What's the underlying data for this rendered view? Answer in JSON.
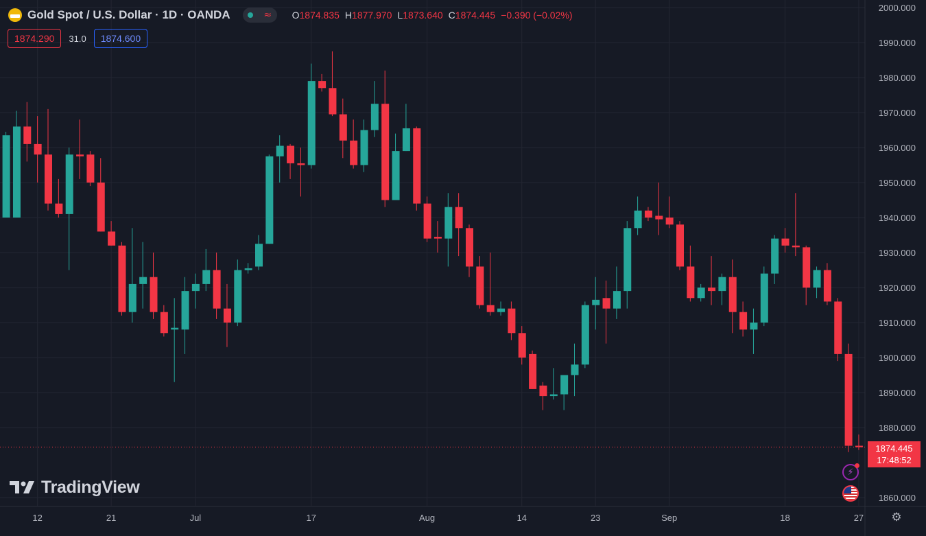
{
  "header": {
    "title": "Gold Spot / U.S. Dollar · 1D · OANDA",
    "ohlc": [
      {
        "key": "O",
        "value": "1874.835"
      },
      {
        "key": "H",
        "value": "1877.970"
      },
      {
        "key": "L",
        "value": "1873.640"
      },
      {
        "key": "C",
        "value": "1874.445"
      }
    ],
    "change": "−0.390 (−0.02%)",
    "bid": "1874.290",
    "spread": "31.0",
    "ask": "1874.600"
  },
  "watermark": "TradingView",
  "price_badge": {
    "price": "1874.445",
    "countdown": "17:48:52"
  },
  "colors": {
    "up": "#26a69a",
    "down": "#f23645",
    "background": "#161a25",
    "grid": "#232632",
    "text": "#b2b5be"
  },
  "icons": [
    "tradingview-logo-icon",
    "flash-icon",
    "us-flag-icon",
    "settings-icon"
  ],
  "chart_data": {
    "type": "candlestick",
    "y_axis": {
      "min": 1856,
      "max": 2001,
      "ticks": [
        "2000.000",
        "1990.000",
        "1980.000",
        "1970.000",
        "1960.000",
        "1950.000",
        "1940.000",
        "1930.000",
        "1920.000",
        "1910.000",
        "1900.000",
        "1890.000",
        "1880.000",
        "1860.000"
      ]
    },
    "x_ticks": [
      {
        "label": "12",
        "index": 3
      },
      {
        "label": "21",
        "index": 10
      },
      {
        "label": "Jul",
        "index": 18
      },
      {
        "label": "17",
        "index": 29
      },
      {
        "label": "Aug",
        "index": 40
      },
      {
        "label": "14",
        "index": 49
      },
      {
        "label": "23",
        "index": 56
      },
      {
        "label": "Sep",
        "index": 63
      },
      {
        "label": "18",
        "index": 74
      },
      {
        "label": "27",
        "index": 81
      }
    ],
    "last_price": 1874.445,
    "candles": [
      {
        "o": 1940.0,
        "h": 1964.5,
        "l": 1940.0,
        "c": 1963.5
      },
      {
        "o": 1940.0,
        "h": 1970.5,
        "l": 1940.0,
        "c": 1966.0
      },
      {
        "o": 1966.0,
        "h": 1973.0,
        "l": 1956.0,
        "c": 1961.0
      },
      {
        "o": 1961.0,
        "h": 1969.0,
        "l": 1950.0,
        "c": 1958.0
      },
      {
        "o": 1958.0,
        "h": 1971.0,
        "l": 1942.0,
        "c": 1944.0
      },
      {
        "o": 1944.0,
        "h": 1951.0,
        "l": 1940.0,
        "c": 1941.0
      },
      {
        "o": 1941.0,
        "h": 1960.0,
        "l": 1925.0,
        "c": 1958.0
      },
      {
        "o": 1958.0,
        "h": 1968.0,
        "l": 1951.0,
        "c": 1957.5
      },
      {
        "o": 1958.0,
        "h": 1959.0,
        "l": 1949.0,
        "c": 1950.0
      },
      {
        "o": 1950.0,
        "h": 1957.0,
        "l": 1936.0,
        "c": 1936.0
      },
      {
        "o": 1936.0,
        "h": 1939.0,
        "l": 1932.0,
        "c": 1932.0
      },
      {
        "o": 1932.0,
        "h": 1933.0,
        "l": 1912.0,
        "c": 1913.0
      },
      {
        "o": 1913.0,
        "h": 1937.0,
        "l": 1910.0,
        "c": 1921.0
      },
      {
        "o": 1921.0,
        "h": 1933.0,
        "l": 1914.0,
        "c": 1923.0
      },
      {
        "o": 1923.0,
        "h": 1930.0,
        "l": 1911.0,
        "c": 1913.0
      },
      {
        "o": 1913.0,
        "h": 1915.0,
        "l": 1906.0,
        "c": 1907.0
      },
      {
        "o": 1908.0,
        "h": 1917.0,
        "l": 1893.0,
        "c": 1908.5
      },
      {
        "o": 1908.0,
        "h": 1923.0,
        "l": 1901.0,
        "c": 1919.0
      },
      {
        "o": 1919.0,
        "h": 1924.0,
        "l": 1914.0,
        "c": 1921.0
      },
      {
        "o": 1921.0,
        "h": 1931.0,
        "l": 1919.0,
        "c": 1925.0
      },
      {
        "o": 1925.0,
        "h": 1930.0,
        "l": 1911.0,
        "c": 1914.0
      },
      {
        "o": 1914.0,
        "h": 1921.0,
        "l": 1903.0,
        "c": 1910.0
      },
      {
        "o": 1910.0,
        "h": 1928.0,
        "l": 1909.0,
        "c": 1925.0
      },
      {
        "o": 1925.0,
        "h": 1927.0,
        "l": 1924.0,
        "c": 1925.5
      },
      {
        "o": 1926.0,
        "h": 1935.0,
        "l": 1925.0,
        "c": 1932.5
      },
      {
        "o": 1932.5,
        "h": 1958.0,
        "l": 1932.5,
        "c": 1957.5
      },
      {
        "o": 1957.5,
        "h": 1963.5,
        "l": 1950.0,
        "c": 1960.5
      },
      {
        "o": 1960.5,
        "h": 1961.0,
        "l": 1951.0,
        "c": 1955.5
      },
      {
        "o": 1955.5,
        "h": 1960.0,
        "l": 1946.0,
        "c": 1955.0
      },
      {
        "o": 1955.0,
        "h": 1984.0,
        "l": 1954.0,
        "c": 1979.0
      },
      {
        "o": 1979.0,
        "h": 1981.0,
        "l": 1976.0,
        "c": 1977.0
      },
      {
        "o": 1977.0,
        "h": 1987.5,
        "l": 1969.0,
        "c": 1969.5
      },
      {
        "o": 1969.5,
        "h": 1974.0,
        "l": 1957.0,
        "c": 1962.0
      },
      {
        "o": 1962.0,
        "h": 1968.0,
        "l": 1954.0,
        "c": 1955.0
      },
      {
        "o": 1955.0,
        "h": 1968.0,
        "l": 1953.0,
        "c": 1965.0
      },
      {
        "o": 1965.0,
        "h": 1979.0,
        "l": 1963.0,
        "c": 1972.5
      },
      {
        "o": 1972.5,
        "h": 1982.0,
        "l": 1943.0,
        "c": 1945.0
      },
      {
        "o": 1945.0,
        "h": 1964.0,
        "l": 1945.0,
        "c": 1959.0
      },
      {
        "o": 1959.0,
        "h": 1972.5,
        "l": 1959.0,
        "c": 1965.5
      },
      {
        "o": 1965.5,
        "h": 1966.0,
        "l": 1942.0,
        "c": 1944.0
      },
      {
        "o": 1944.0,
        "h": 1946.0,
        "l": 1933.0,
        "c": 1934.0
      },
      {
        "o": 1934.5,
        "h": 1939.0,
        "l": 1930.0,
        "c": 1934.0
      },
      {
        "o": 1934.0,
        "h": 1947.0,
        "l": 1926.0,
        "c": 1943.0
      },
      {
        "o": 1943.0,
        "h": 1947.0,
        "l": 1929.0,
        "c": 1937.0
      },
      {
        "o": 1937.0,
        "h": 1938.0,
        "l": 1923.0,
        "c": 1926.0
      },
      {
        "o": 1926.0,
        "h": 1929.0,
        "l": 1914.0,
        "c": 1915.0
      },
      {
        "o": 1915.0,
        "h": 1930.0,
        "l": 1912.0,
        "c": 1913.0
      },
      {
        "o": 1913.0,
        "h": 1916.0,
        "l": 1912.0,
        "c": 1914.0
      },
      {
        "o": 1914.0,
        "h": 1916.0,
        "l": 1905.0,
        "c": 1907.0
      },
      {
        "o": 1907.0,
        "h": 1909.0,
        "l": 1898.0,
        "c": 1900.0
      },
      {
        "o": 1901.0,
        "h": 1902.0,
        "l": 1891.0,
        "c": 1891.0
      },
      {
        "o": 1892.0,
        "h": 1893.0,
        "l": 1885.0,
        "c": 1889.0
      },
      {
        "o": 1889.0,
        "h": 1897.0,
        "l": 1888.0,
        "c": 1889.5
      },
      {
        "o": 1889.5,
        "h": 1895.0,
        "l": 1885.0,
        "c": 1895.0
      },
      {
        "o": 1895.0,
        "h": 1904.0,
        "l": 1889.0,
        "c": 1898.0
      },
      {
        "o": 1898.0,
        "h": 1916.0,
        "l": 1897.0,
        "c": 1915.0
      },
      {
        "o": 1915.0,
        "h": 1923.0,
        "l": 1908.0,
        "c": 1916.5
      },
      {
        "o": 1917.0,
        "h": 1922.0,
        "l": 1904.0,
        "c": 1914.0
      },
      {
        "o": 1914.0,
        "h": 1926.0,
        "l": 1911.0,
        "c": 1919.0
      },
      {
        "o": 1919.0,
        "h": 1939.0,
        "l": 1914.0,
        "c": 1937.0
      },
      {
        "o": 1937.0,
        "h": 1946.0,
        "l": 1935.0,
        "c": 1942.0
      },
      {
        "o": 1942.0,
        "h": 1943.0,
        "l": 1939.0,
        "c": 1940.0
      },
      {
        "o": 1940.5,
        "h": 1950.0,
        "l": 1935.0,
        "c": 1939.5
      },
      {
        "o": 1940.0,
        "h": 1946.0,
        "l": 1937.0,
        "c": 1938.0
      },
      {
        "o": 1938.0,
        "h": 1939.0,
        "l": 1925.0,
        "c": 1926.0
      },
      {
        "o": 1926.0,
        "h": 1932.0,
        "l": 1916.0,
        "c": 1917.0
      },
      {
        "o": 1917.0,
        "h": 1921.0,
        "l": 1916.0,
        "c": 1920.0
      },
      {
        "o": 1920.0,
        "h": 1929.0,
        "l": 1915.0,
        "c": 1919.0
      },
      {
        "o": 1919.0,
        "h": 1924.0,
        "l": 1915.0,
        "c": 1923.0
      },
      {
        "o": 1923.0,
        "h": 1928.0,
        "l": 1907.0,
        "c": 1913.0
      },
      {
        "o": 1913.0,
        "h": 1916.0,
        "l": 1906.0,
        "c": 1908.0
      },
      {
        "o": 1908.0,
        "h": 1914.0,
        "l": 1901.0,
        "c": 1910.0
      },
      {
        "o": 1910.0,
        "h": 1926.0,
        "l": 1909.0,
        "c": 1924.0
      },
      {
        "o": 1924.0,
        "h": 1935.0,
        "l": 1921.0,
        "c": 1934.0
      },
      {
        "o": 1934.0,
        "h": 1937.0,
        "l": 1930.0,
        "c": 1932.0
      },
      {
        "o": 1932.0,
        "h": 1947.0,
        "l": 1929.0,
        "c": 1931.5
      },
      {
        "o": 1931.5,
        "h": 1932.0,
        "l": 1915.0,
        "c": 1920.0
      },
      {
        "o": 1920.0,
        "h": 1926.0,
        "l": 1917.0,
        "c": 1925.0
      },
      {
        "o": 1925.0,
        "h": 1927.0,
        "l": 1915.0,
        "c": 1916.0
      },
      {
        "o": 1916.0,
        "h": 1917.0,
        "l": 1899.0,
        "c": 1901.0
      },
      {
        "o": 1901.0,
        "h": 1904.0,
        "l": 1873.0,
        "c": 1874.8
      },
      {
        "o": 1874.8,
        "h": 1878.0,
        "l": 1873.6,
        "c": 1874.4
      }
    ]
  }
}
